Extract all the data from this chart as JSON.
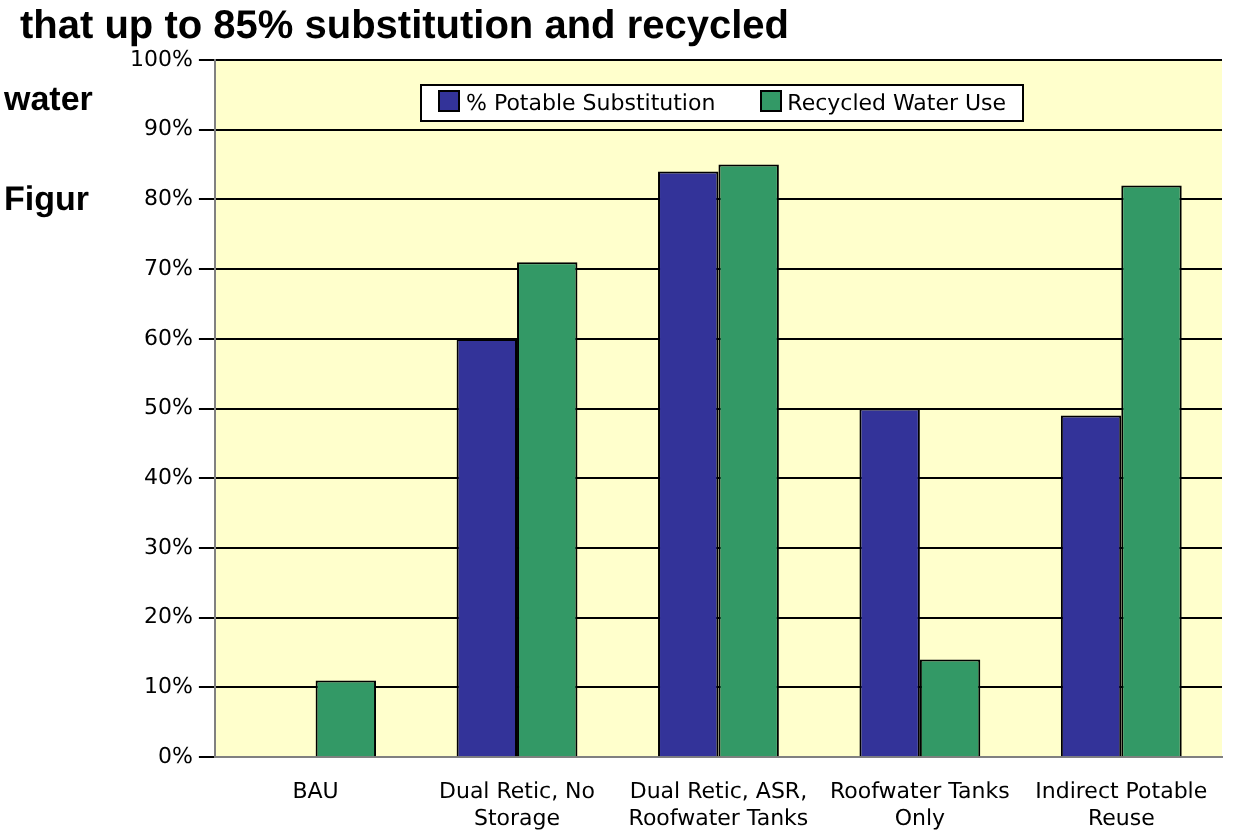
{
  "chart_data": {
    "type": "bar",
    "categories": [
      "BAU",
      "Dual Retic, No Storage",
      "Dual Retic, ASR, Roofwater Tanks",
      "Roofwater Tanks Only",
      "Indirect Potable Reuse"
    ],
    "series": [
      {
        "name": "% Potable Substitution",
        "color": "#333399",
        "values": [
          0,
          60,
          84,
          50,
          49
        ]
      },
      {
        "name": "Recycled Water Use",
        "color": "#339966",
        "values": [
          11,
          71,
          85,
          14,
          82
        ]
      }
    ],
    "ylim": [
      0,
      100
    ],
    "yticks": [
      {
        "value": 0,
        "label": "0%"
      },
      {
        "value": 10,
        "label": "10%"
      },
      {
        "value": 20,
        "label": "20%"
      },
      {
        "value": 30,
        "label": "30%"
      },
      {
        "value": 40,
        "label": "40%"
      },
      {
        "value": 50,
        "label": "50%"
      },
      {
        "value": 60,
        "label": "60%"
      },
      {
        "value": 70,
        "label": "70%"
      },
      {
        "value": 80,
        "label": "80%"
      },
      {
        "value": 90,
        "label": "90%"
      },
      {
        "value": 100,
        "label": "100%"
      }
    ],
    "grid": "y",
    "legend": "top",
    "annotations": [
      "that up to 85% substitution and recycled",
      "water",
      "Figur"
    ]
  }
}
